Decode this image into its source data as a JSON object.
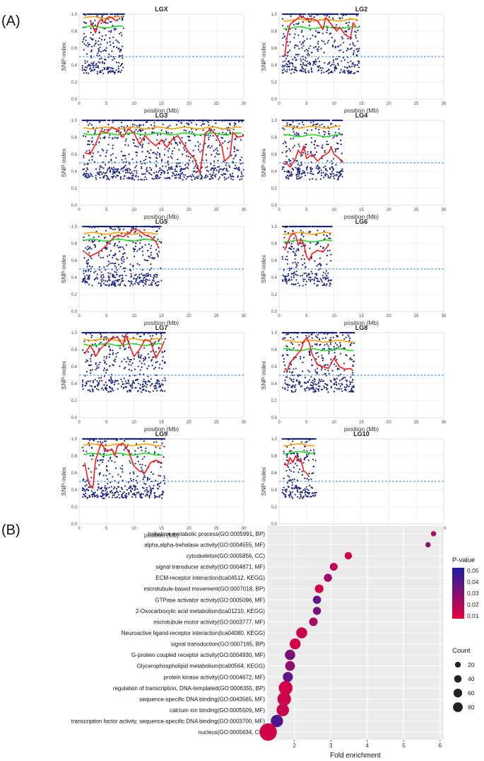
{
  "panel_a_label": "(A)",
  "panel_b_label": "(B)",
  "chart_data": [
    {
      "type": "scatter",
      "description": "SNP-index along linkage groups (dots = SNPs, red = sliding-window mean, orange = 99% threshold, green = 95% threshold, blue dashed = 0.5)",
      "xlabel": "position (Mb)",
      "ylabel": "SNP-index",
      "xlim": [
        0,
        30
      ],
      "ylim": [
        0,
        1.0
      ],
      "xticks": [
        "0",
        "5",
        "10",
        "15",
        "20",
        "25",
        "30"
      ],
      "yticks": [
        "0.0",
        "0.2",
        "0.4",
        "0.6",
        "0.8",
        "1.0"
      ],
      "reference_line": 0.5,
      "colors": {
        "points": "#1a237e",
        "mean": "#ff1a1a",
        "thr99": "#ffa000",
        "thr95": "#22dd22",
        "ref": "#3b88d8"
      },
      "panels": [
        {
          "title": "LGX",
          "end": 8.2,
          "thr99": 0.96,
          "thr95": 0.85,
          "seed": 11,
          "mean": [
            [
              2.0,
              0.93
            ],
            [
              2.5,
              0.85
            ],
            [
              3.0,
              0.78
            ],
            [
              3.5,
              0.9
            ],
            [
              4.0,
              0.94
            ],
            [
              4.5,
              0.9
            ],
            [
              5.0,
              0.95
            ],
            [
              5.5,
              0.97
            ],
            [
              6.0,
              0.96
            ],
            [
              6.5,
              0.93
            ],
            [
              7.0,
              0.92
            ]
          ],
          "mean_x": [
            2.0,
            7.0
          ]
        },
        {
          "title": "LG2",
          "end": 14.6,
          "thr99": 0.93,
          "thr95": 0.84,
          "seed": 22,
          "mean": [
            [
              1.0,
              0.5
            ],
            [
              1.5,
              0.75
            ],
            [
              2.0,
              0.88
            ],
            [
              3,
              0.93
            ],
            [
              4,
              0.98
            ],
            [
              5,
              0.94
            ],
            [
              6,
              0.95
            ],
            [
              7,
              0.92
            ],
            [
              8,
              0.82
            ],
            [
              8.5,
              0.96
            ],
            [
              9.5,
              0.88
            ],
            [
              10.5,
              0.8
            ],
            [
              11,
              0.85
            ],
            [
              12,
              0.76
            ],
            [
              13,
              0.72
            ],
            [
              13.5,
              0.9
            ],
            [
              14,
              0.85
            ]
          ]
        },
        {
          "title": "LG3",
          "end": 30.0,
          "thr99": 0.91,
          "thr95": 0.84,
          "seed": 33,
          "mean": [
            [
              1,
              0.62
            ],
            [
              2,
              0.6
            ],
            [
              3,
              0.72
            ],
            [
              4,
              0.88
            ],
            [
              5,
              0.85
            ],
            [
              6,
              0.92
            ],
            [
              7,
              0.88
            ],
            [
              8,
              0.8
            ],
            [
              9,
              0.9
            ],
            [
              10,
              0.85
            ],
            [
              11,
              0.72
            ],
            [
              12,
              0.82
            ],
            [
              13,
              0.75
            ],
            [
              14,
              0.7
            ],
            [
              15,
              0.77
            ],
            [
              16,
              0.68
            ],
            [
              17,
              0.78
            ],
            [
              18,
              0.82
            ],
            [
              19,
              0.72
            ],
            [
              20,
              0.62
            ],
            [
              21,
              0.55
            ],
            [
              22,
              0.38
            ],
            [
              22.5,
              0.6
            ],
            [
              23,
              0.85
            ],
            [
              24,
              0.9
            ],
            [
              25,
              0.82
            ],
            [
              26,
              0.7
            ],
            [
              26.5,
              0.52
            ],
            [
              27.5,
              0.58
            ],
            [
              28,
              0.86
            ],
            [
              29,
              0.8
            ],
            [
              30,
              0.82
            ]
          ]
        },
        {
          "title": "LG4",
          "end": 11.6,
          "thr99": 0.92,
          "thr95": 0.82,
          "seed": 44,
          "mean": [
            [
              1,
              0.52
            ],
            [
              2,
              0.45
            ],
            [
              3,
              0.55
            ],
            [
              3.5,
              0.65
            ],
            [
              4,
              0.6
            ],
            [
              4.5,
              0.7
            ],
            [
              5,
              0.55
            ],
            [
              6,
              0.6
            ],
            [
              7,
              0.52
            ],
            [
              8,
              0.58
            ],
            [
              9,
              0.62
            ],
            [
              9.5,
              0.68
            ],
            [
              10,
              0.6
            ],
            [
              11,
              0.55
            ],
            [
              11.5,
              0.5
            ]
          ]
        },
        {
          "title": "LG5",
          "end": 15.0,
          "thr99": 0.92,
          "thr95": 0.84,
          "seed": 55,
          "mean": [
            [
              1,
              0.7
            ],
            [
              2,
              0.65
            ],
            [
              3,
              0.68
            ],
            [
              4,
              0.72
            ],
            [
              5,
              0.78
            ],
            [
              6,
              0.85
            ],
            [
              7,
              0.9
            ],
            [
              8,
              0.88
            ],
            [
              9,
              0.92
            ],
            [
              10,
              0.97
            ],
            [
              11,
              0.95
            ],
            [
              12,
              0.9
            ],
            [
              13,
              0.88
            ],
            [
              14,
              0.82
            ],
            [
              14.5,
              0.75
            ]
          ]
        },
        {
          "title": "LG6",
          "end": 9.6,
          "thr99": 0.92,
          "thr95": 0.83,
          "seed": 66,
          "mean": [
            [
              1,
              0.72
            ],
            [
              1.5,
              0.8
            ],
            [
              2,
              0.88
            ],
            [
              2.5,
              0.92
            ],
            [
              3,
              0.9
            ],
            [
              3.5,
              0.78
            ],
            [
              4,
              0.85
            ],
            [
              4.5,
              0.8
            ],
            [
              5,
              0.65
            ],
            [
              5.5,
              0.6
            ],
            [
              6,
              0.68
            ],
            [
              7,
              0.72
            ],
            [
              8,
              0.7
            ],
            [
              9,
              0.78
            ]
          ]
        },
        {
          "title": "LG7",
          "end": 15.7,
          "thr99": 0.92,
          "thr95": 0.86,
          "seed": 77,
          "mean": [
            [
              1,
              0.75
            ],
            [
              2,
              0.85
            ],
            [
              2.5,
              0.8
            ],
            [
              3,
              0.72
            ],
            [
              4,
              0.82
            ],
            [
              5,
              0.88
            ],
            [
              6,
              0.93
            ],
            [
              7,
              0.95
            ],
            [
              8,
              0.85
            ],
            [
              8.5,
              0.98
            ],
            [
              9,
              0.88
            ],
            [
              10,
              0.72
            ],
            [
              11,
              0.8
            ],
            [
              12,
              0.92
            ],
            [
              13,
              0.9
            ],
            [
              14,
              0.7
            ],
            [
              15,
              0.82
            ],
            [
              15.5,
              0.9
            ]
          ]
        },
        {
          "title": "LG8",
          "end": 13.7,
          "thr99": 0.9,
          "thr95": 0.8,
          "seed": 88,
          "mean": [
            [
              1,
              0.58
            ],
            [
              1.5,
              0.55
            ],
            [
              2,
              0.65
            ],
            [
              3,
              0.72
            ],
            [
              4,
              0.8
            ],
            [
              4.5,
              0.9
            ],
            [
              5,
              0.94
            ],
            [
              5.5,
              0.88
            ],
            [
              6,
              0.75
            ],
            [
              7,
              0.62
            ],
            [
              8,
              0.6
            ],
            [
              9,
              0.58
            ],
            [
              10,
              0.7
            ],
            [
              11,
              0.6
            ],
            [
              12,
              0.57
            ],
            [
              13,
              0.58
            ],
            [
              13.5,
              0.55
            ]
          ]
        },
        {
          "title": "LG9",
          "end": 15.6,
          "thr99": 0.93,
          "thr95": 0.82,
          "seed": 99,
          "mean": [
            [
              1,
              0.72
            ],
            [
              1.5,
              0.55
            ],
            [
              2,
              0.45
            ],
            [
              2.5,
              0.42
            ],
            [
              3,
              0.75
            ],
            [
              4,
              0.95
            ],
            [
              5,
              0.85
            ],
            [
              6,
              0.88
            ],
            [
              6.5,
              0.8
            ],
            [
              7,
              0.92
            ],
            [
              8,
              0.95
            ],
            [
              9,
              0.85
            ],
            [
              10,
              0.68
            ],
            [
              11,
              0.62
            ],
            [
              12,
              0.6
            ],
            [
              13,
              0.72
            ],
            [
              14,
              0.75
            ],
            [
              15,
              0.72
            ]
          ]
        },
        {
          "title": "LG10",
          "end": 6.8,
          "thr99": 0.93,
          "thr95": 0.84,
          "seed": 110,
          "mean": [
            [
              1,
              0.72
            ],
            [
              1.5,
              0.68
            ],
            [
              2,
              0.78
            ],
            [
              2.5,
              0.72
            ],
            [
              3,
              0.8
            ],
            [
              3.5,
              0.74
            ],
            [
              4,
              0.75
            ],
            [
              4.5,
              0.62
            ],
            [
              5,
              0.6
            ],
            [
              5.5,
              0.55
            ]
          ]
        }
      ]
    },
    {
      "type": "scatter",
      "subtype": "bubble",
      "description": "GO/KEGG enrichment bubble plot",
      "xlabel": "Fold enrichment",
      "xlim": [
        1.25,
        6.1
      ],
      "xticks": [
        2,
        3,
        4,
        5,
        6
      ],
      "color_legend": {
        "title": "P-value",
        "ticks": [
          "0.05",
          "0.04",
          "0.03",
          "0.02",
          "0.01"
        ],
        "low_color": "#e8003d",
        "high_color": "#1f1fa8"
      },
      "size_legend": {
        "title": "Count",
        "ticks": [
          20,
          40,
          60,
          80
        ]
      },
      "terms": [
        {
          "label": "trehalose metabolic process(GO:0005991, BP)",
          "fold": 5.82,
          "count": 2,
          "p": 0.02
        },
        {
          "label": "alpha,alpha-trehalase activity(GO:0004555, MF)",
          "fold": 5.67,
          "count": 2,
          "p": 0.025
        },
        {
          "label": "cytoskeleton(GO:0005856, CC)",
          "fold": 3.48,
          "count": 8,
          "p": 0.01
        },
        {
          "label": "signal transducer activity(GO:0004871, MF)",
          "fold": 3.08,
          "count": 10,
          "p": 0.015
        },
        {
          "label": "ECM-receptor interaction(tca04512, KEGG)",
          "fold": 2.92,
          "count": 11,
          "p": 0.02
        },
        {
          "label": "microtubule-based movement(GO:0007018, BP)",
          "fold": 2.68,
          "count": 14,
          "p": 0.01
        },
        {
          "label": "GTPase activator activity(GO:0005096, MF)",
          "fold": 2.62,
          "count": 12,
          "p": 0.035
        },
        {
          "label": "2-Oxocarboxylic acid metabolism(tca01210, KEGG)",
          "fold": 2.62,
          "count": 11,
          "p": 0.03
        },
        {
          "label": "microtubule motor activity(GO:0003777, MF)",
          "fold": 2.52,
          "count": 13,
          "p": 0.02
        },
        {
          "label": "Neuroactive ligand-receptor interaction(tca04080, KEGG)",
          "fold": 2.2,
          "count": 28,
          "p": 0.012
        },
        {
          "label": "signal transduction(GO:0007165, BP)",
          "fold": 2.02,
          "count": 27,
          "p": 0.01
        },
        {
          "label": "G-protein coupled receptor activity(GO:0004930, MF)",
          "fold": 1.88,
          "count": 24,
          "p": 0.03
        },
        {
          "label": "Glycerophospholipid metabolism(tca00564, KEGG)",
          "fold": 1.88,
          "count": 20,
          "p": 0.025
        },
        {
          "label": "protein kinase activity(GO:0004672, MF)",
          "fold": 1.82,
          "count": 22,
          "p": 0.035
        },
        {
          "label": "regulation of transcription, DNA-templated(GO:0006355, BP)",
          "fold": 1.76,
          "count": 52,
          "p": 0.01
        },
        {
          "label": "sequence-specific DNA binding(GO:0043565, MF)",
          "fold": 1.72,
          "count": 50,
          "p": 0.012
        },
        {
          "label": "calcium ion binding(GO:0005509, MF)",
          "fold": 1.68,
          "count": 40,
          "p": 0.012
        },
        {
          "label": "transcription factor activity, sequence-specific DNA binding(GO:0003700, MF)",
          "fold": 1.52,
          "count": 38,
          "p": 0.04
        },
        {
          "label": "nucleus(GO:0005634, CC)",
          "fold": 1.28,
          "count": 92,
          "p": 0.01
        }
      ]
    }
  ]
}
